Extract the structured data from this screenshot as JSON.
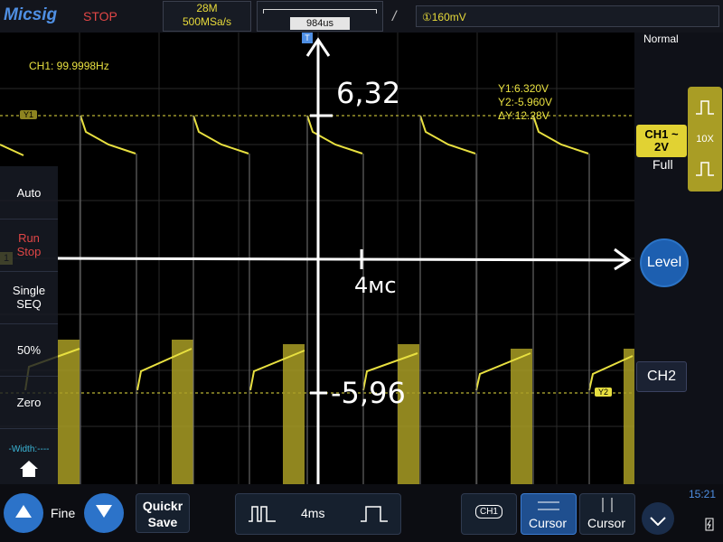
{
  "topbar": {
    "brand": "Micsig",
    "run_state": "STOP",
    "memory_depth": "28M",
    "sample_rate": "500MSa/s",
    "time_position": "984us",
    "trigger_slope_symbol": "/",
    "trigger_level": "①160mV"
  },
  "measurements": {
    "ch1_freq": "CH1: 99.9998Hz",
    "cursor_y1": "Y1:6.320V",
    "cursor_y2": "Y2:-5.960V",
    "cursor_dy": "ΔY:12.28V"
  },
  "markers": {
    "y1": "Y1",
    "y2": "Y2",
    "ch1_marker": "1",
    "trigger_marker": "T"
  },
  "annotations": {
    "top_value": "6,32",
    "bottom_value": "-5,96",
    "time_label": "4мс"
  },
  "side_menu": {
    "auto": "Auto",
    "run": "Run",
    "stop": "Stop",
    "single": "Single",
    "seq": "SEQ",
    "fifty": "50%",
    "zero": "Zero",
    "width": "-Width:----"
  },
  "right_panel": {
    "trigger_mode": "Normal",
    "ch1_label": "CH1 ~",
    "ch1_scale": "2V",
    "coupling": "Full",
    "probe": "10X",
    "level": "Level",
    "ch2": "CH2"
  },
  "bottom": {
    "fine": "Fine",
    "quick_save_line1": "Quickr",
    "quick_save_line2": "Save",
    "timebase": "4ms",
    "ch1_tag": "CH1",
    "cursor_a": "Cursor",
    "cursor_b": "Cursor",
    "clock": "15:21"
  },
  "colors": {
    "trace": "#e8e040",
    "accent": "#2c73c9",
    "stop": "#e04646"
  }
}
